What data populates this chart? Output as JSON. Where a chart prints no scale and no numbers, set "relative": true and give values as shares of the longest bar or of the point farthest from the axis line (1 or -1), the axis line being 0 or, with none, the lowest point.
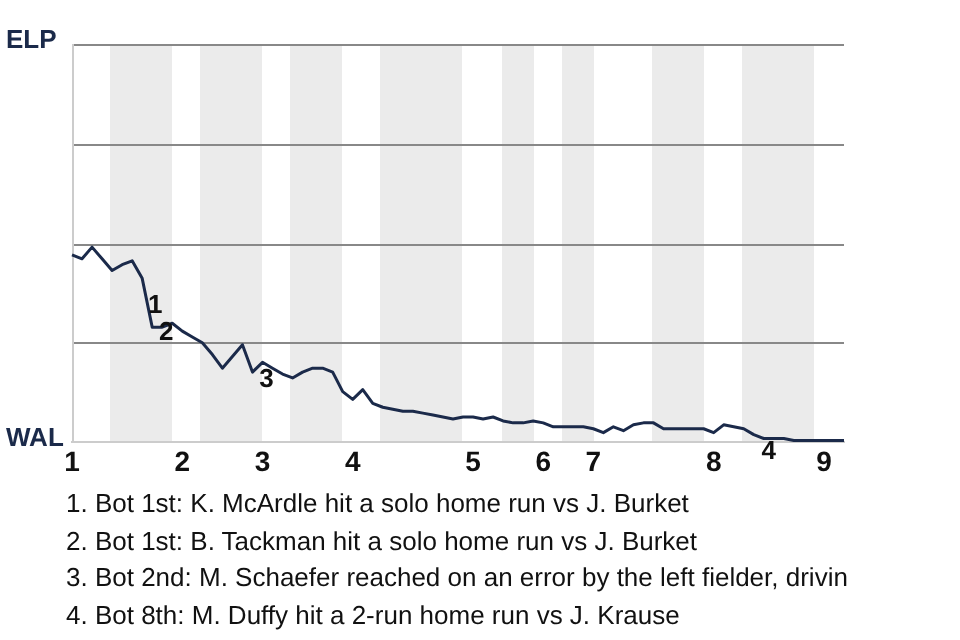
{
  "chart_data": {
    "type": "line",
    "relative": true,
    "categories": [
      "1",
      null,
      null,
      null,
      null,
      null,
      null,
      null,
      null,
      null,
      null,
      "2",
      null,
      null,
      null,
      null,
      null,
      null,
      null,
      "3",
      null,
      null,
      null,
      null,
      null,
      null,
      null,
      null,
      "4",
      null,
      null,
      null,
      null,
      null,
      null,
      null,
      null,
      null,
      null,
      null,
      "5",
      null,
      null,
      null,
      null,
      null,
      null,
      "6",
      null,
      null,
      null,
      null,
      "7",
      null,
      null,
      null,
      null,
      null,
      null,
      null,
      null,
      null,
      null,
      null,
      "8",
      null,
      null,
      null,
      null,
      null,
      null,
      null,
      null,
      null,
      null,
      "9",
      null,
      null
    ],
    "series": [
      {
        "color": "#1b2a4a",
        "values": [
          0.96,
          0.94,
          1,
          0.94,
          0.88,
          0.91,
          0.93,
          0.84,
          0.59,
          0.59,
          0.61,
          0.57,
          0.54,
          0.51,
          0.45,
          0.38,
          0.44,
          0.5,
          0.36,
          0.41,
          0.38,
          0.35,
          0.33,
          0.36,
          0.38,
          0.38,
          0.36,
          0.26,
          0.22,
          0.27,
          0.2,
          0.18,
          0.17,
          0.16,
          0.16,
          0.15,
          0.14,
          0.13,
          0.12,
          0.13,
          0.13,
          0.12,
          0.13,
          0.11,
          0.1,
          0.1,
          0.11,
          0.1,
          0.08,
          0.08,
          0.08,
          0.08,
          0.07,
          0.05,
          0.08,
          0.06,
          0.09,
          0.1,
          0.1,
          0.07,
          0.07,
          0.07,
          0.07,
          0.07,
          0.05,
          0.09,
          0.08,
          0.07,
          0.04,
          0.02,
          0.02,
          0.02,
          0.01,
          0.01,
          0.01,
          0.01,
          0.01,
          0.01
        ]
      }
    ],
    "marker": "none",
    "annotations": [
      "1",
      "2",
      "3",
      "4",
      "ELP",
      "WAL",
      "1. Bot 1st: K. McArdle hit a solo home run vs J. Burket",
      "2. Bot 1st: B. Tackman hit a solo home run vs J. Burket",
      "3. Bot 2nd: M. Schaefer reached on an error by the left fielder, drivin",
      "4. Bot 8th: M. Duffy hit a 2-run home run vs J. Krause"
    ]
  }
}
